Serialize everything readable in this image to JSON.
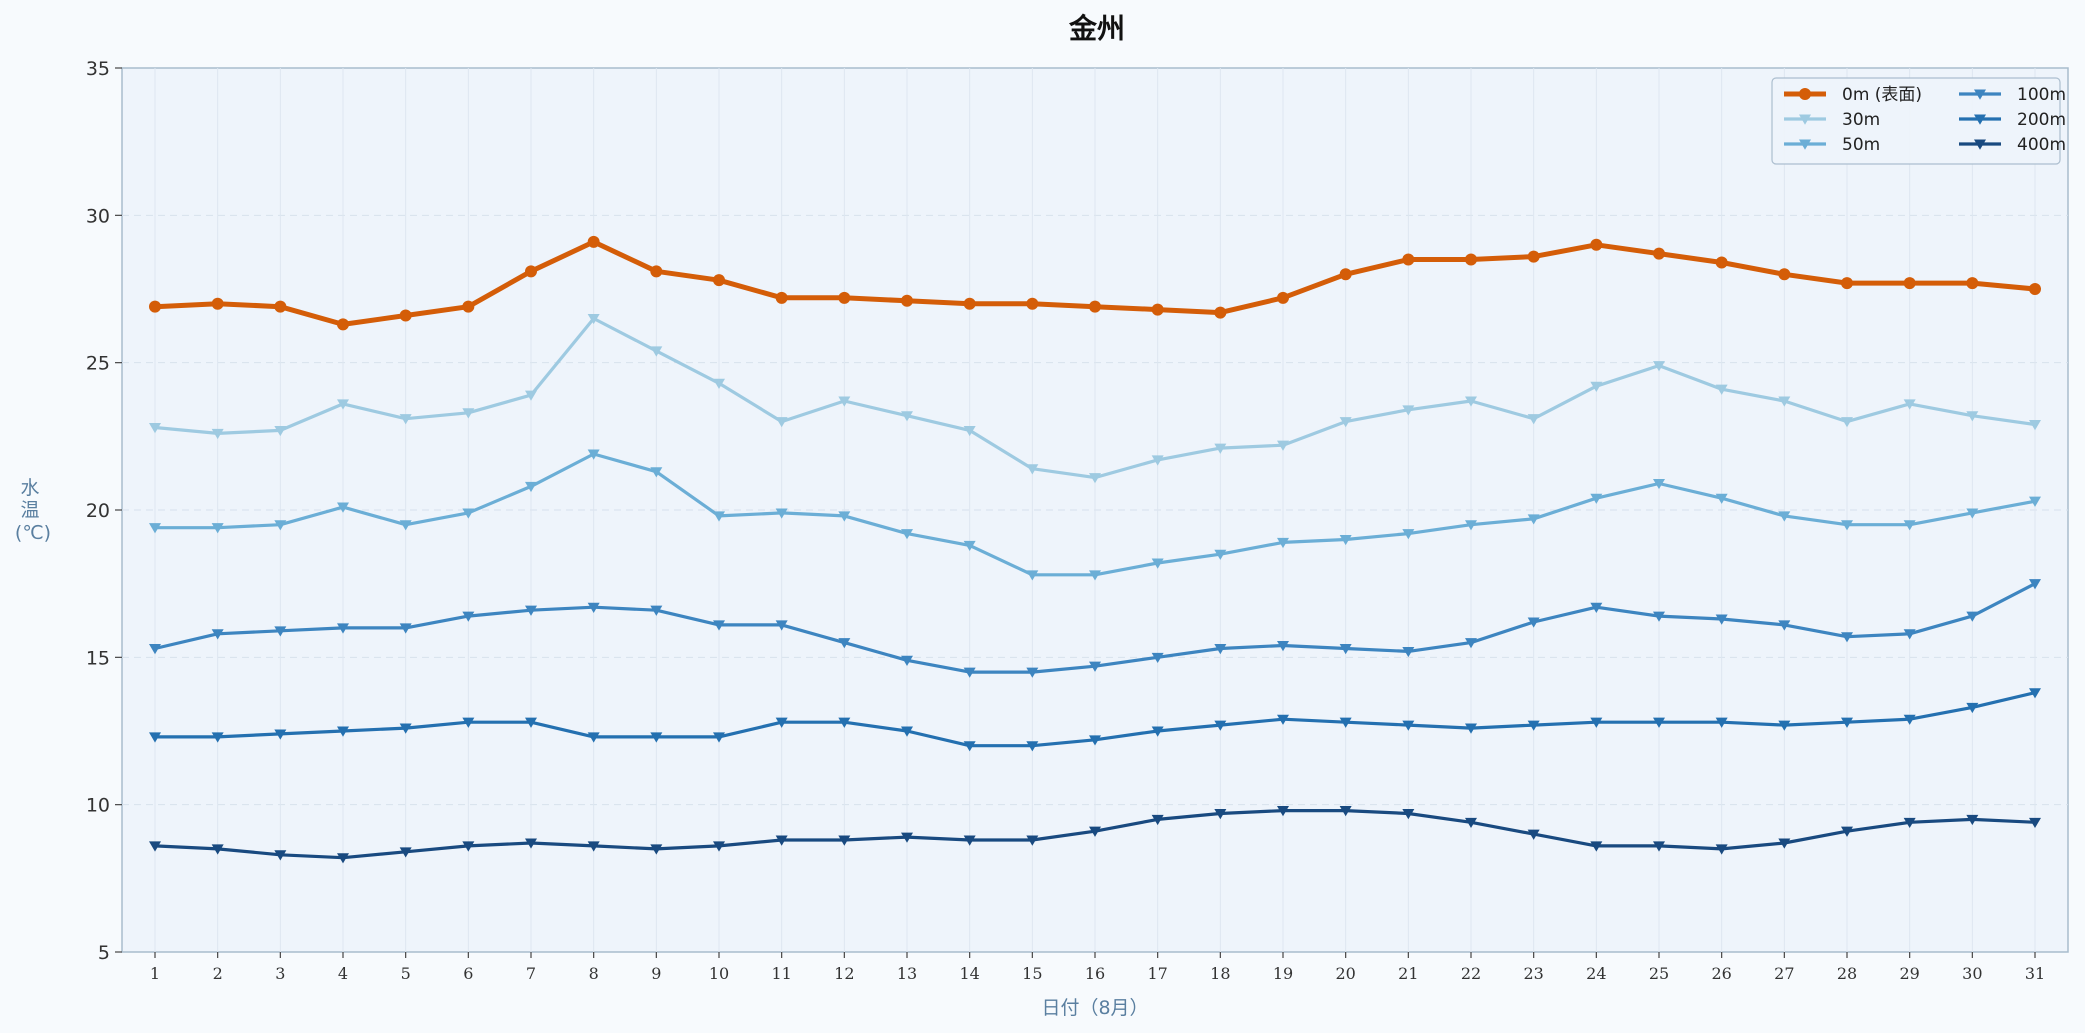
{
  "chart_data": {
    "type": "line",
    "title": "金州",
    "xlabel": "日付（8月）",
    "ylabel": "水温(℃)",
    "ylabel_lines": [
      "水",
      "温",
      "(℃)"
    ],
    "xlim": [
      1,
      31
    ],
    "ylim": [
      5,
      35
    ],
    "yticks": [
      5,
      10,
      15,
      20,
      25,
      30,
      35
    ],
    "x": [
      1,
      2,
      3,
      4,
      5,
      6,
      7,
      8,
      9,
      10,
      11,
      12,
      13,
      14,
      15,
      16,
      17,
      18,
      19,
      20,
      21,
      22,
      23,
      24,
      25,
      26,
      27,
      28,
      29,
      30,
      31
    ],
    "grid": true,
    "legend_position": "top-right",
    "series": [
      {
        "name": "0m (表面)",
        "color": "#d45d08",
        "marker": "circle",
        "values": [
          26.9,
          27.0,
          26.9,
          26.3,
          26.6,
          26.9,
          28.1,
          29.1,
          28.1,
          27.8,
          27.2,
          27.2,
          27.1,
          27.0,
          27.0,
          26.9,
          26.8,
          26.7,
          27.2,
          28.0,
          28.5,
          28.5,
          28.6,
          29.0,
          28.7,
          28.4,
          28.0,
          27.7,
          27.7,
          27.7,
          27.5
        ]
      },
      {
        "name": "30m",
        "color": "#9ecae1",
        "marker": "triangle-down",
        "values": [
          22.8,
          22.6,
          22.7,
          23.6,
          23.1,
          23.3,
          23.9,
          26.5,
          25.4,
          24.3,
          23.0,
          23.7,
          23.2,
          22.7,
          21.4,
          21.1,
          21.7,
          22.1,
          22.2,
          23.0,
          23.4,
          23.7,
          23.1,
          24.2,
          24.9,
          24.1,
          23.7,
          23.0,
          23.6,
          23.2,
          22.9
        ]
      },
      {
        "name": "50m",
        "color": "#6baed6",
        "marker": "triangle-down",
        "values": [
          19.4,
          19.4,
          19.5,
          20.1,
          19.5,
          19.9,
          20.8,
          21.9,
          21.3,
          19.8,
          19.9,
          19.8,
          19.2,
          18.8,
          17.8,
          17.8,
          18.2,
          18.5,
          18.9,
          19.0,
          19.2,
          19.5,
          19.7,
          20.4,
          20.9,
          20.4,
          19.8,
          19.5,
          19.5,
          19.9,
          20.3
        ]
      },
      {
        "name": "100m",
        "color": "#3d85c0",
        "marker": "triangle-down",
        "values": [
          15.3,
          15.8,
          15.9,
          16.0,
          16.0,
          16.4,
          16.6,
          16.7,
          16.6,
          16.1,
          16.1,
          15.5,
          14.9,
          14.5,
          14.5,
          14.7,
          15.0,
          15.3,
          15.4,
          15.3,
          15.2,
          15.5,
          16.2,
          16.7,
          16.4,
          16.3,
          16.1,
          15.7,
          15.8,
          16.4,
          17.5
        ]
      },
      {
        "name": "200m",
        "color": "#2470b0",
        "marker": "triangle-down",
        "values": [
          12.3,
          12.3,
          12.4,
          12.5,
          12.6,
          12.8,
          12.8,
          12.3,
          12.3,
          12.3,
          12.8,
          12.8,
          12.5,
          12.0,
          12.0,
          12.2,
          12.5,
          12.7,
          12.9,
          12.8,
          12.7,
          12.6,
          12.7,
          12.8,
          12.8,
          12.8,
          12.7,
          12.8,
          12.9,
          13.3,
          13.8
        ]
      },
      {
        "name": "400m",
        "color": "#194a80",
        "marker": "triangle-down",
        "values": [
          8.6,
          8.5,
          8.3,
          8.2,
          8.4,
          8.6,
          8.7,
          8.6,
          8.5,
          8.6,
          8.8,
          8.8,
          8.9,
          8.8,
          8.8,
          9.1,
          9.5,
          9.7,
          9.8,
          9.8,
          9.7,
          9.4,
          9.0,
          8.6,
          8.6,
          8.5,
          8.7,
          9.1,
          9.4,
          9.5,
          9.4
        ]
      }
    ]
  }
}
